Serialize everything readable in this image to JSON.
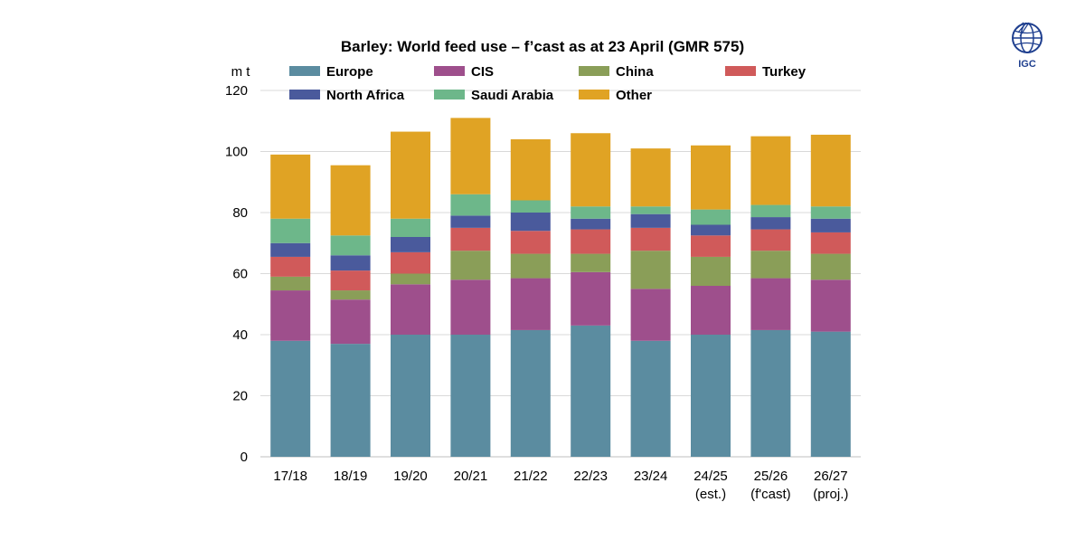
{
  "chart_data": {
    "type": "bar",
    "stacked": true,
    "title": "Barley: World feed use – f’cast as at 23 April (GMR 575)",
    "ylabel": "m t",
    "ylim": [
      0,
      120
    ],
    "yticks": [
      0,
      20,
      40,
      60,
      80,
      100,
      120
    ],
    "grid": true,
    "legend_position": "top",
    "categories": [
      [
        "17/18"
      ],
      [
        "18/19"
      ],
      [
        "19/20"
      ],
      [
        "20/21"
      ],
      [
        "21/22"
      ],
      [
        "22/23"
      ],
      [
        "23/24"
      ],
      [
        "24/25",
        "(est.)"
      ],
      [
        "25/26",
        "(f'cast)"
      ],
      [
        "26/27",
        "(proj.)"
      ]
    ],
    "series": [
      {
        "name": "Europe",
        "color": "#5b8ca0",
        "values": [
          38,
          37,
          40,
          40,
          41.5,
          43,
          38,
          40,
          41.5,
          41
        ]
      },
      {
        "name": "CIS",
        "color": "#9e4f8c",
        "values": [
          16.5,
          14.5,
          16.5,
          18,
          17,
          17.5,
          17,
          16,
          17,
          17
        ]
      },
      {
        "name": "China",
        "color": "#8a9e58",
        "values": [
          4.5,
          3,
          3.5,
          9.5,
          8,
          6,
          12.5,
          9.5,
          9,
          8.5
        ]
      },
      {
        "name": "Turkey",
        "color": "#d05a5a",
        "values": [
          6.5,
          6.5,
          7,
          7.5,
          7.5,
          8,
          7.5,
          7,
          7,
          7
        ]
      },
      {
        "name": "North Africa",
        "color": "#4a5a9c",
        "values": [
          4.5,
          5,
          5,
          4,
          6,
          3.5,
          4.5,
          3.5,
          4,
          4.5
        ]
      },
      {
        "name": "Saudi Arabia",
        "color": "#6db78a",
        "values": [
          8,
          6.5,
          6,
          7,
          4,
          4,
          2.5,
          5,
          4,
          4
        ]
      },
      {
        "name": "Other",
        "color": "#e0a324",
        "values": [
          21,
          23,
          28.5,
          25,
          20,
          24,
          19,
          21,
          22.5,
          23.5
        ]
      }
    ]
  },
  "logo": {
    "text": "IGC",
    "color": "#1f3f8f"
  }
}
